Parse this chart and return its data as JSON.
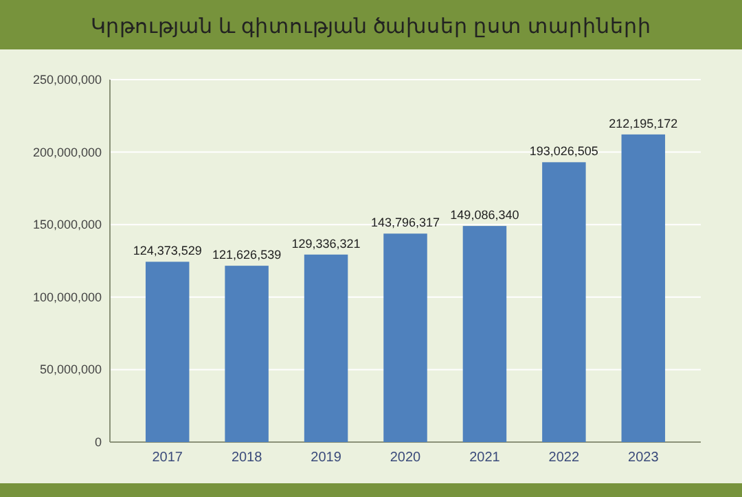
{
  "chart_data": {
    "type": "bar",
    "title": "Կրթության և գիտության ծախսեր ըստ տարիների",
    "categories": [
      "2017",
      "2018",
      "2019",
      "2020",
      "2021",
      "2022",
      "2023"
    ],
    "values": [
      124373529,
      121626539,
      129336321,
      143796317,
      149086340,
      193026505,
      212195172
    ],
    "value_labels": [
      "124,373,529",
      "121,626,539",
      "129,336,321",
      "143,796,317",
      "149,086,340",
      "193,026,505",
      "212,195,172"
    ],
    "color": "#4f81bd",
    "ylim": [
      0,
      250000000
    ],
    "yticks": [
      {
        "value": 0,
        "label": "0"
      },
      {
        "value": 50000000,
        "label": "50,000,000"
      },
      {
        "value": 100000000,
        "label": "100,000,000"
      },
      {
        "value": 150000000,
        "label": "150,000,000"
      },
      {
        "value": 200000000,
        "label": "200,000,000"
      },
      {
        "value": 250000000,
        "label": "250,000,000"
      }
    ],
    "grid": "y"
  }
}
